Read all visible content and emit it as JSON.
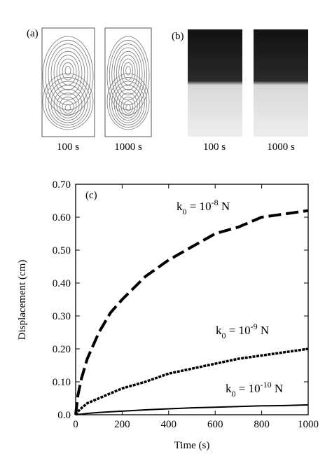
{
  "figure_panels": [
    {
      "label": "(a)",
      "captions": [
        "100 s",
        "1000 s"
      ]
    },
    {
      "label": "(b)",
      "captions": [
        "100 s",
        "1000 s"
      ]
    }
  ],
  "chart_data": {
    "type": "line",
    "panel_label": "(c)",
    "x_label": "Time (s)",
    "y_label": "Displacement (cm)",
    "xlim": [
      0,
      1000
    ],
    "ylim": [
      0,
      0.7
    ],
    "xticks": [
      0,
      200,
      400,
      600,
      800,
      1000
    ],
    "yticks": [
      {
        "value": 0,
        "label": "0.0"
      },
      {
        "value": 0.1,
        "label": "0.10"
      },
      {
        "value": 0.2,
        "label": "0.20"
      },
      {
        "value": 0.3,
        "label": "0.30"
      },
      {
        "value": 0.4,
        "label": "0.40"
      },
      {
        "value": 0.5,
        "label": "0.50"
      },
      {
        "value": 0.6,
        "label": "0.60"
      },
      {
        "value": 0.7,
        "label": "0.70"
      }
    ],
    "x": [
      0,
      10,
      25,
      50,
      100,
      150,
      200,
      300,
      400,
      500,
      600,
      700,
      800,
      900,
      1000
    ],
    "series": [
      {
        "color": "#000000",
        "line_style": "dashed",
        "values": [
          0,
          0.06,
          0.11,
          0.17,
          0.25,
          0.31,
          0.35,
          0.42,
          0.47,
          0.51,
          0.55,
          0.57,
          0.6,
          0.61,
          0.62
        ]
      },
      {
        "color": "#000000",
        "line_style": "dotted",
        "values": [
          0,
          0.01,
          0.02,
          0.035,
          0.05,
          0.065,
          0.08,
          0.1,
          0.125,
          0.14,
          0.155,
          0.17,
          0.18,
          0.19,
          0.2
        ]
      },
      {
        "color": "#000000",
        "line_style": "solid",
        "values": [
          0,
          0.001,
          0.002,
          0.004,
          0.007,
          0.009,
          0.011,
          0.015,
          0.018,
          0.021,
          0.023,
          0.025,
          0.027,
          0.028,
          0.03
        ]
      }
    ],
    "annotations": [
      {
        "base": "k",
        "sub": "0",
        "mid": " = 10",
        "sup": "-8",
        "end": " N"
      },
      {
        "base": "k",
        "sub": "0",
        "mid": " = 10",
        "sup": "-9",
        "end": " N"
      },
      {
        "base": "k",
        "sub": "0",
        "mid": " = 10",
        "sup": "-10",
        "end": " N"
      }
    ]
  }
}
